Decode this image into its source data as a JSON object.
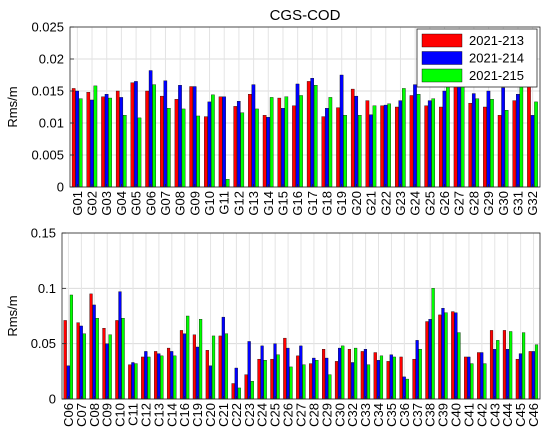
{
  "chart_data": [
    {
      "type": "bar",
      "title": "CGS-COD",
      "xlabel": "",
      "ylabel": "Rms/m",
      "ylim": [
        0,
        0.025
      ],
      "yticks": [
        "0",
        "0.005",
        "0.01",
        "0.015",
        "0.02",
        "0.025"
      ],
      "ytick_values": [
        0,
        0.005,
        0.01,
        0.015,
        0.02,
        0.025
      ],
      "grid": true,
      "legend_position": "top-right",
      "categories": [
        "G01",
        "G02",
        "G03",
        "G04",
        "G05",
        "G06",
        "G07",
        "G08",
        "G09",
        "G10",
        "G11",
        "G12",
        "G13",
        "G14",
        "G15",
        "G16",
        "G17",
        "G18",
        "G19",
        "G20",
        "G21",
        "G22",
        "G23",
        "G24",
        "G25",
        "G26",
        "G27",
        "G28",
        "G29",
        "G30",
        "G31",
        "G32"
      ],
      "series": [
        {
          "name": "2021-213",
          "color": "#ff0000",
          "values": [
            0.0154,
            0.0148,
            0.0141,
            0.015,
            0.0163,
            0.015,
            0.0142,
            0.0137,
            0.0157,
            0.011,
            0.0141,
            0.0126,
            0.0145,
            0.0112,
            0.0139,
            0.0127,
            0.0165,
            0.011,
            0.0124,
            0.0153,
            0.0135,
            0.0127,
            0.0125,
            0.0143,
            0.0127,
            0.0125,
            0.0165,
            0.0131,
            0.0125,
            0.0112,
            0.0135,
            0.0163
          ]
        },
        {
          "name": "2021-214",
          "color": "#0000ff",
          "values": [
            0.015,
            0.0136,
            0.0145,
            0.014,
            0.0165,
            0.0182,
            0.0166,
            0.0159,
            0.0157,
            0.0133,
            0.0141,
            0.0134,
            0.016,
            0.0109,
            0.0123,
            0.0161,
            0.017,
            0.0123,
            0.0175,
            0.0142,
            0.0113,
            0.0128,
            0.0135,
            0.016,
            0.0135,
            0.015,
            0.0165,
            0.0146,
            0.015,
            0.0155,
            0.0145,
            0.0112
          ]
        },
        {
          "name": "2021-215",
          "color": "#00ff00",
          "values": [
            0.0138,
            0.0158,
            0.0139,
            0.0112,
            0.0108,
            0.016,
            0.0123,
            0.0122,
            0.0111,
            0.0144,
            0.0012,
            0.0116,
            0.0122,
            0.014,
            0.0141,
            0.0143,
            0.0159,
            0.014,
            0.0112,
            0.0112,
            0.0127,
            0.013,
            0.0154,
            0.0145,
            0.0138,
            0.0157,
            0.018,
            0.0138,
            0.0137,
            0.012,
            0.0157,
            0.0133
          ]
        }
      ]
    },
    {
      "type": "bar",
      "title": "",
      "xlabel": "",
      "ylabel": "Rms/m",
      "ylim": [
        0,
        0.15
      ],
      "yticks": [
        "0",
        "0.05",
        "0.1",
        "0.15"
      ],
      "ytick_values": [
        0,
        0.05,
        0.1,
        0.15
      ],
      "grid": true,
      "categories": [
        "C06",
        "C07",
        "C08",
        "C09",
        "C10",
        "C11",
        "C12",
        "C13",
        "C14",
        "C16",
        "C19",
        "C20",
        "C21",
        "C22",
        "C23",
        "C24",
        "C25",
        "C26",
        "C27",
        "C28",
        "C29",
        "C30",
        "C32",
        "C33",
        "C34",
        "C35",
        "C36",
        "C37",
        "C38",
        "C39",
        "C40",
        "C41",
        "C42",
        "C43",
        "C44",
        "C45",
        "C46"
      ],
      "series": [
        {
          "name": "2021-213",
          "color": "#ff0000",
          "values": [
            0.071,
            0.069,
            0.095,
            0.064,
            0.071,
            0.031,
            0.038,
            0.043,
            0.046,
            0.062,
            0.058,
            0.044,
            0.057,
            0.014,
            0.022,
            0.036,
            0.036,
            0.055,
            0.039,
            0.032,
            0.045,
            0.034,
            0.045,
            0.043,
            0.042,
            0.034,
            0.038,
            0.036,
            0.07,
            0.076,
            0.079,
            0.038,
            0.042,
            0.062,
            0.062,
            0.036,
            0.043
          ]
        },
        {
          "name": "2021-214",
          "color": "#0000ff",
          "values": [
            0.03,
            0.066,
            0.085,
            0.05,
            0.097,
            0.033,
            0.043,
            0.041,
            0.043,
            0.059,
            0.047,
            0.03,
            0.074,
            0.028,
            0.052,
            0.048,
            0.05,
            0.046,
            0.048,
            0.037,
            0.037,
            0.046,
            0.033,
            0.045,
            0.035,
            0.04,
            0.02,
            0.053,
            0.072,
            0.082,
            0.078,
            0.038,
            0.042,
            0.045,
            0.045,
            0.041,
            0.043
          ]
        },
        {
          "name": "2021-215",
          "color": "#00ff00",
          "values": [
            0.094,
            0.059,
            0.073,
            0.058,
            0.073,
            0.032,
            0.038,
            0.039,
            0.039,
            0.075,
            0.072,
            0.057,
            0.059,
            0.01,
            0.016,
            0.035,
            0.04,
            0.029,
            0.031,
            0.035,
            0.022,
            0.048,
            0.046,
            0.031,
            0.039,
            0.038,
            0.018,
            0.045,
            0.1,
            0.078,
            0.06,
            0.032,
            0.032,
            0.053,
            0.061,
            0.06,
            0.049
          ]
        }
      ]
    }
  ]
}
